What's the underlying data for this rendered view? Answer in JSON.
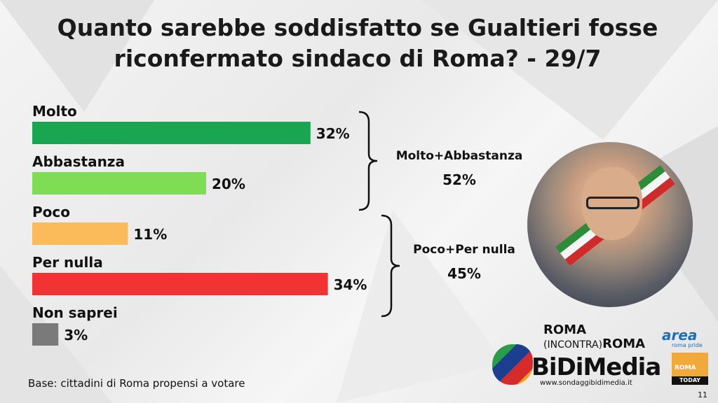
{
  "title_line1": "Quanto sarebbe soddisfatto se Gualtieri fosse",
  "title_line2": "riconfermato sindaco di Roma? - 29/7",
  "chart_data": {
    "type": "bar",
    "orientation": "horizontal",
    "categories": [
      "Molto",
      "Abbastanza",
      "Poco",
      "Per nulla",
      "Non saprei"
    ],
    "values": [
      32,
      20,
      11,
      34,
      3
    ],
    "value_labels": [
      "32%",
      "20%",
      "11%",
      "34%",
      "3%"
    ],
    "colors": [
      "#1aa551",
      "#7fdc55",
      "#fbbb5a",
      "#f23333",
      "#7a7a7a"
    ],
    "title": "Quanto sarebbe soddisfatto se Gualtieri fosse riconfermato sindaco di Roma? - 29/7",
    "groups": [
      {
        "label": "Molto+Abbastanza",
        "value": "52%",
        "members": [
          "Molto",
          "Abbastanza"
        ]
      },
      {
        "label": "Poco+Per nulla",
        "value": "45%",
        "members": [
          "Poco",
          "Per nulla"
        ]
      }
    ]
  },
  "base_note": "Base: cittadini di Roma propensi a votare",
  "logos": {
    "roma_incontra_roma_1": "ROMA",
    "roma_incontra_roma_2": "(INCONTRA)",
    "roma_incontra_roma_3": "ROMA",
    "area": "area",
    "area_sub": "roma pride",
    "bidimedia": "BiDiMedia",
    "website": "www.sondaggibidimedia.it",
    "romatoday_1": "ROMA",
    "romatoday_2": "TODAY"
  },
  "page_number": "11"
}
